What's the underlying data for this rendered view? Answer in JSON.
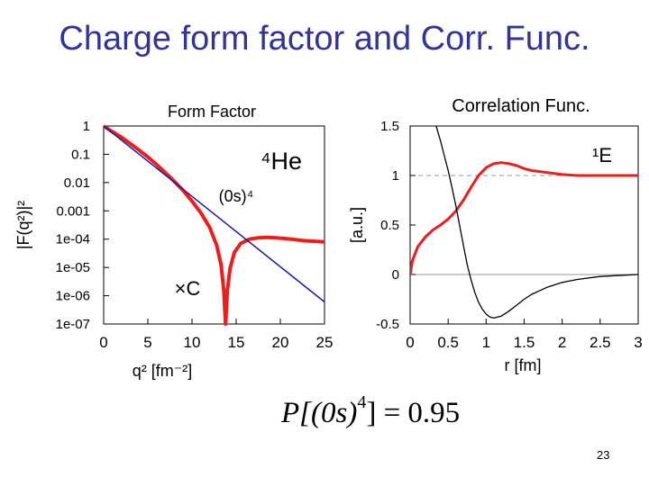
{
  "slide": {
    "title": "Charge form factor and Corr. Func.",
    "page_number": "23"
  },
  "formula": {
    "lhs": "P[(0s)",
    "exponent": "4",
    "rhs": "] = 0.95"
  },
  "chart_data": [
    {
      "type": "line",
      "title": "Form Factor",
      "xlabel": "q² [fm⁻²]",
      "ylabel": "|F(q²)|²",
      "xlim": [
        0,
        25
      ],
      "ylim": [
        1e-07,
        1
      ],
      "yscale": "log",
      "x_ticks": [
        "0",
        "5",
        "10",
        "15",
        "20",
        "25"
      ],
      "y_ticks": [
        "1",
        "0.1",
        "0.01",
        "0.001",
        "1e-04",
        "1e-05",
        "1e-06",
        "1e-07"
      ],
      "annotations": [
        {
          "text": "⁴He"
        },
        {
          "text": "(0s)⁴"
        },
        {
          "text": "×C"
        }
      ],
      "series": [
        {
          "color": "#ee1c1c",
          "x": [
            0,
            1,
            2,
            3,
            4,
            5,
            6,
            7,
            8,
            9,
            10,
            11,
            12,
            12.8,
            13.3,
            13.6,
            13.8,
            14,
            14.3,
            14.8,
            15.5,
            16.5,
            17.5,
            18.5,
            19.5,
            20.5,
            21.5,
            22.5,
            23.5,
            25
          ],
          "y": [
            1,
            0.62,
            0.4,
            0.24,
            0.14,
            0.08,
            0.043,
            0.022,
            0.011,
            0.0052,
            0.0022,
            0.00085,
            0.00026,
            6e-05,
            1.2e-05,
            1.5e-06,
            1e-07,
            1.5e-06,
            9e-06,
            3.4e-05,
            7e-05,
            0.0001,
            0.000112,
            0.000115,
            0.000112,
            0.000105,
            9.8e-05,
            9e-05,
            8.5e-05,
            8e-05
          ]
        },
        {
          "color": "#1a1aa6",
          "x": [
            0,
            25
          ],
          "y": [
            1,
            6e-07
          ]
        }
      ]
    },
    {
      "type": "line",
      "title": "Correlation Func.",
      "xlabel": "r [fm]",
      "ylabel": "[a.u.]",
      "xlim": [
        0,
        3
      ],
      "ylim": [
        -0.5,
        1.5
      ],
      "x_ticks": [
        "0",
        "0.5",
        "1",
        "1.5",
        "2",
        "2.5",
        "3"
      ],
      "y_ticks": [
        "1.5",
        "1",
        "0.5",
        "0",
        "-0.5"
      ],
      "annotations": [
        {
          "text": "¹E"
        }
      ],
      "reference_lines": [
        {
          "y": 1,
          "style": "dashed"
        },
        {
          "y": 0,
          "style": "solid"
        }
      ],
      "series": [
        {
          "color": "#ee1c1c",
          "x": [
            0,
            0.03,
            0.1,
            0.2,
            0.3,
            0.4,
            0.5,
            0.6,
            0.7,
            0.8,
            0.9,
            1.0,
            1.1,
            1.2,
            1.3,
            1.4,
            1.5,
            1.6,
            1.8,
            2.0,
            2.2,
            2.5,
            3.0
          ],
          "y": [
            0,
            0.14,
            0.28,
            0.38,
            0.45,
            0.5,
            0.56,
            0.64,
            0.75,
            0.88,
            1.0,
            1.08,
            1.12,
            1.13,
            1.12,
            1.1,
            1.07,
            1.05,
            1.03,
            1.01,
            1.0,
            1.0,
            1.0
          ]
        },
        {
          "color": "#000000",
          "x": [
            0.3,
            0.35,
            0.4,
            0.45,
            0.5,
            0.55,
            0.6,
            0.65,
            0.7,
            0.75,
            0.8,
            0.85,
            0.9,
            0.95,
            1.0,
            1.05,
            1.1,
            1.15,
            1.2,
            1.3,
            1.4,
            1.5,
            1.6,
            1.8,
            2.0,
            2.2,
            2.5,
            3.0
          ],
          "y": [
            1.6,
            1.48,
            1.35,
            1.2,
            1.05,
            0.88,
            0.7,
            0.5,
            0.3,
            0.1,
            -0.05,
            -0.18,
            -0.28,
            -0.35,
            -0.4,
            -0.43,
            -0.44,
            -0.43,
            -0.42,
            -0.37,
            -0.31,
            -0.25,
            -0.2,
            -0.13,
            -0.08,
            -0.05,
            -0.02,
            0
          ]
        }
      ]
    }
  ]
}
